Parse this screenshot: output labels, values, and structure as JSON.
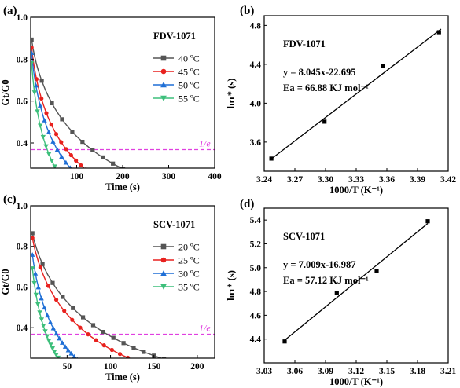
{
  "chart_data": [
    {
      "panel": "(a)",
      "type": "line",
      "title": "FDV-1071",
      "xlabel": "Time (s)",
      "ylabel": "Gt/G0",
      "xlim": [
        0,
        400
      ],
      "ylim": [
        0.28,
        1.0
      ],
      "xticks": [
        100,
        200,
        300,
        400
      ],
      "xtick_labels": [
        "100",
        "200",
        "300",
        "400"
      ],
      "yticks": [
        0.4,
        0.6,
        0.8,
        1.0
      ],
      "ytick_labels": [
        "0.4",
        "0.6",
        "0.8",
        "1.0"
      ],
      "reference_line": {
        "y": 0.368,
        "label": "1/e",
        "color": "#e040e0"
      },
      "legend_position": "right",
      "series": [
        {
          "name": "40 ºC",
          "color": "#555555",
          "marker": "square",
          "tau": 135,
          "x_end": 400
        },
        {
          "name": "45 ºC",
          "color": "#e8211e",
          "marker": "circle",
          "tau": 80,
          "x_end": 195
        },
        {
          "name": "50 ºC",
          "color": "#1f6fd6",
          "marker": "triangle-up",
          "tau": 60,
          "x_end": 170
        },
        {
          "name": "55 ºC",
          "color": "#3dbf7b",
          "marker": "triangle-down",
          "tau": 38,
          "x_end": 115
        }
      ]
    },
    {
      "panel": "(b)",
      "type": "scatter",
      "title": "FDV-1071",
      "xlabel": "1000/T (K⁻¹)",
      "ylabel": "lnτ* (s)",
      "xlim": [
        3.24,
        3.42
      ],
      "ylim": [
        3.3,
        4.9
      ],
      "xticks": [
        3.24,
        3.27,
        3.3,
        3.33,
        3.36,
        3.39,
        3.42
      ],
      "xtick_labels": [
        "3.24",
        "3.27",
        "3.30",
        "3.33",
        "3.36",
        "3.39",
        "3.42"
      ],
      "yticks": [
        3.6,
        4.0,
        4.4,
        4.8
      ],
      "ytick_labels": [
        "3.6",
        "4.0",
        "4.4",
        "4.8"
      ],
      "points": [
        [
          3.247,
          3.43
        ],
        [
          3.299,
          3.81
        ],
        [
          3.356,
          4.38
        ],
        [
          3.411,
          4.73
        ]
      ],
      "fit": {
        "slope": 8.045,
        "intercept": -22.695,
        "x_range": [
          3.247,
          3.413
        ]
      },
      "annotations": [
        "y = 8.045x-22.695",
        "Ea = 66.88 KJ mol⁻¹"
      ]
    },
    {
      "panel": "(c)",
      "type": "line",
      "title": "SCV-1071",
      "xlabel": "Time (s)",
      "ylabel": "Gt/G0",
      "xlim": [
        8,
        220
      ],
      "ylim": [
        0.25,
        1.0
      ],
      "xticks": [
        50,
        100,
        150,
        200
      ],
      "xtick_labels": [
        "50",
        "100",
        "150",
        "200"
      ],
      "yticks": [
        0.4,
        0.6,
        0.8,
        1.0
      ],
      "ytick_labels": [
        "0.4",
        "0.6",
        "0.8",
        "1.0"
      ],
      "reference_line": {
        "y": 0.368,
        "label": "1/e",
        "color": "#e040e0"
      },
      "legend_position": "right",
      "series": [
        {
          "name": "20 ºC",
          "color": "#555555",
          "marker": "square",
          "tau": 90,
          "x_end": 220
        },
        {
          "name": "25 ºC",
          "color": "#e8211e",
          "marker": "circle",
          "tau": 68,
          "x_end": 175
        },
        {
          "name": "30 ºC",
          "color": "#1f6fd6",
          "marker": "triangle-up",
          "tau": 32,
          "x_end": 72
        },
        {
          "name": "35 ºC",
          "color": "#3dbf7b",
          "marker": "triangle-down",
          "tau": 20,
          "x_end": 48
        }
      ]
    },
    {
      "panel": "(d)",
      "type": "scatter",
      "title": "SCV-1071",
      "xlabel": "1000/T (K⁻¹)",
      "ylabel": "lnτ* (s)",
      "xlim": [
        3.03,
        3.21
      ],
      "ylim": [
        4.2,
        5.5
      ],
      "xticks": [
        3.03,
        3.06,
        3.09,
        3.12,
        3.15,
        3.18,
        3.21
      ],
      "xtick_labels": [
        "3.03",
        "3.06",
        "3.09",
        "3.12",
        "3.15",
        "3.18",
        "3.21"
      ],
      "yticks": [
        4.4,
        4.6,
        4.8,
        5.0,
        5.2,
        5.4
      ],
      "ytick_labels": [
        "4.4",
        "4.6",
        "4.8",
        "5.0",
        "5.2",
        "5.4"
      ],
      "points": [
        [
          3.05,
          4.38
        ],
        [
          3.101,
          4.79
        ],
        [
          3.14,
          4.97
        ],
        [
          3.19,
          5.39
        ]
      ],
      "fit": {
        "slope": 7.009,
        "intercept": -16.987,
        "x_range": [
          3.05,
          3.19
        ]
      },
      "annotations": [
        "y = 7.009x-16.987",
        "Ea = 57.12 KJ mol⁻¹"
      ]
    }
  ]
}
